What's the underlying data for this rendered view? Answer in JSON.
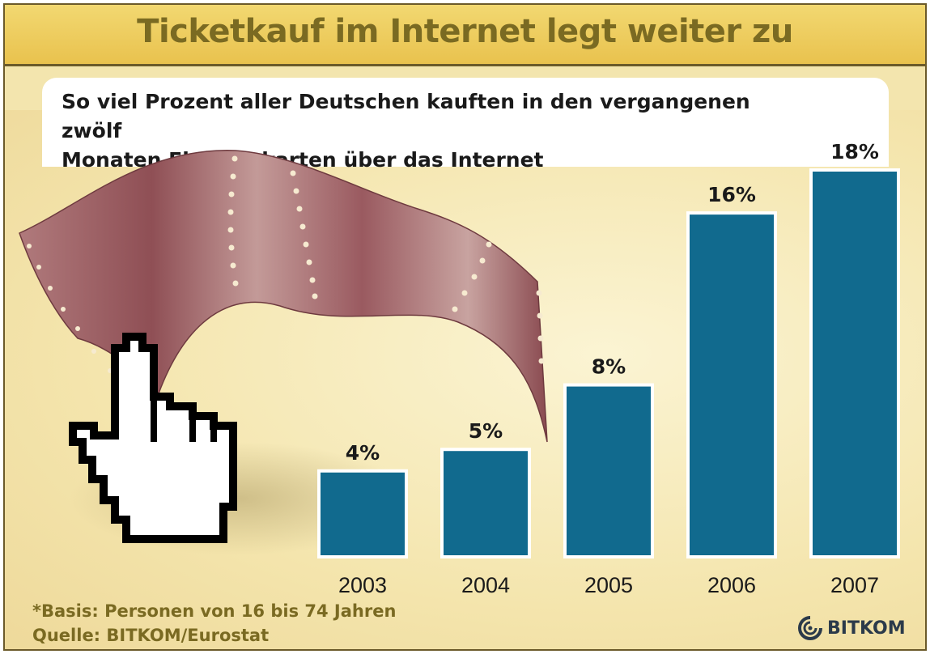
{
  "header": {
    "title": "Ticketkauf im Internet legt weiter zu"
  },
  "subtitle": {
    "line1": "So viel Prozent aller Deutschen kauften in den vergangenen zwölf",
    "line2": "Monaten Eintrittskarten über das Internet"
  },
  "footer": {
    "basis": "*Basis: Personen von 16 bis 74 Jahren",
    "source": "Quelle: BITKOM/Eurostat",
    "logo_text": "BITKOM"
  },
  "colors": {
    "bar": "#116a8e",
    "title": "#7a6a22",
    "film": "#a86a6f"
  },
  "icons": [
    "hand-cursor-icon",
    "film-strip-icon",
    "bitkom-logo-icon"
  ],
  "chart_data": {
    "type": "bar",
    "categories": [
      "2003",
      "2004",
      "2005",
      "2006",
      "2007"
    ],
    "values": [
      4,
      5,
      8,
      16,
      18
    ],
    "value_labels": [
      "4%",
      "5%",
      "8%",
      "16%",
      "18%"
    ],
    "title": "Ticketkauf im Internet legt weiter zu",
    "subtitle": "So viel Prozent aller Deutschen kauften in den vergangenen zwölf Monaten Eintrittskarten über das Internet",
    "xlabel": "",
    "ylabel": "",
    "unit": "%",
    "ylim": [
      0,
      18
    ],
    "grid": false,
    "legend": "none"
  }
}
